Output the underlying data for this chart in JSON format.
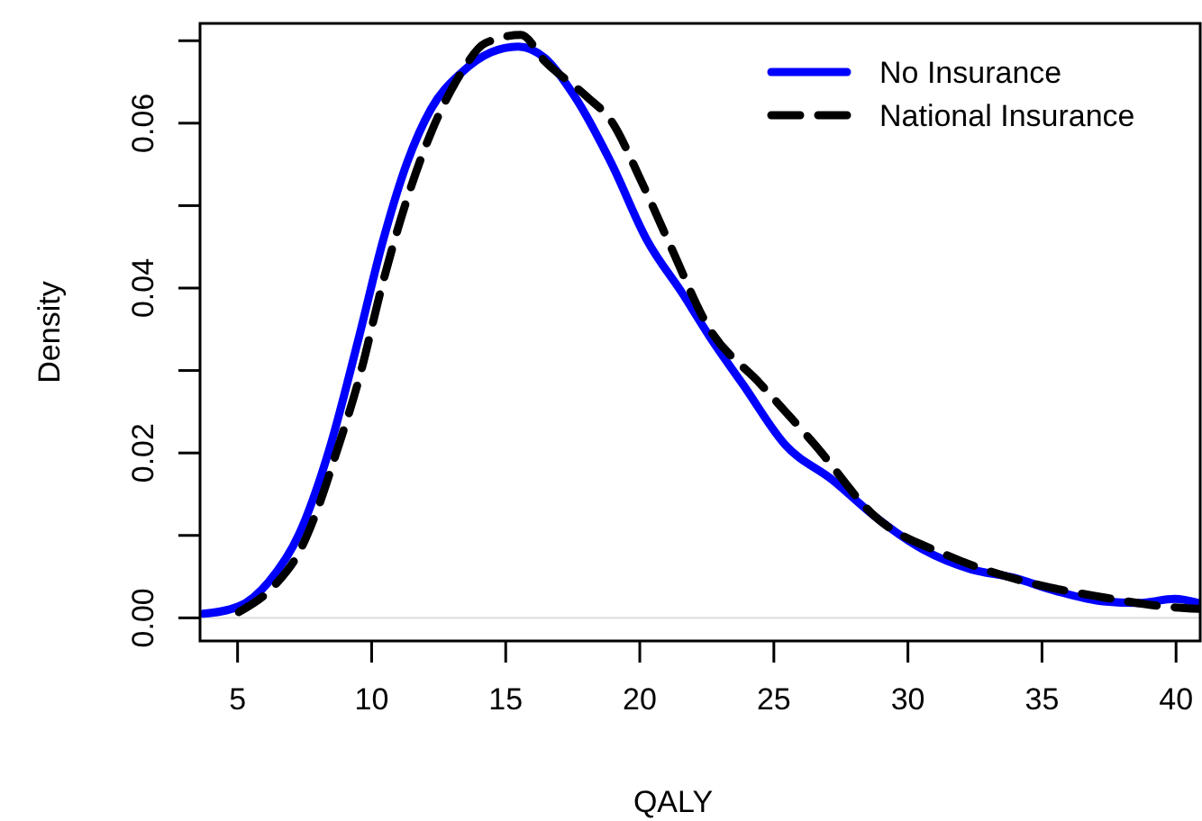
{
  "chart_data": {
    "type": "line",
    "xlabel": "QALY",
    "ylabel": "Density",
    "xlim": [
      3.6,
      40.9
    ],
    "xticks": [
      5,
      10,
      15,
      20,
      25,
      30,
      35,
      40
    ],
    "ylim": [
      -0.0028,
      0.0721
    ],
    "yticks": [
      {
        "value": 0,
        "label": "0.00"
      },
      {
        "value": 0.01,
        "label": null
      },
      {
        "value": 0.02,
        "label": "0.02"
      },
      {
        "value": 0.03,
        "label": null
      },
      {
        "value": 0.04,
        "label": "0.04"
      },
      {
        "value": 0.05,
        "label": null
      },
      {
        "value": 0.06,
        "label": "0.06"
      },
      {
        "value": 0.07,
        "label": null
      }
    ],
    "legend": "top right",
    "grid": false,
    "ref_lines": [
      {
        "axis": "y",
        "value": 0,
        "color": "#e0e0e0"
      }
    ],
    "series": [
      {
        "name": "No Insurance",
        "color": "#0000ff",
        "line_style": "solid",
        "x": [
          3.71,
          5.05,
          6.17,
          7.3,
          8.41,
          9.53,
          10.42,
          11.32,
          12.21,
          13.34,
          14.45,
          15.46,
          16.46,
          17.58,
          18.93,
          20.27,
          21.6,
          22.73,
          23.85,
          25.42,
          27.2,
          28.77,
          30.56,
          32.35,
          33.9,
          35.48,
          37.27,
          38.6,
          39.95,
          40.85
        ],
        "values": [
          0.0005,
          0.0014,
          0.0044,
          0.0102,
          0.0203,
          0.0341,
          0.0457,
          0.0552,
          0.0617,
          0.0661,
          0.0686,
          0.0693,
          0.0679,
          0.0632,
          0.0552,
          0.0458,
          0.0393,
          0.0335,
          0.0283,
          0.021,
          0.0167,
          0.0123,
          0.0083,
          0.0059,
          0.0049,
          0.0033,
          0.002,
          0.0018,
          0.0023,
          0.0018
        ]
      },
      {
        "name": "National Insurance",
        "color": "#000000",
        "line_style": "dashed",
        "x": [
          5.05,
          6.4,
          7.3,
          7.97,
          8.64,
          9.53,
          10.42,
          11.32,
          12.21,
          13.34,
          14.23,
          15.57,
          16.46,
          18.03,
          18.93,
          20.05,
          21.16,
          22.5,
          24.52,
          26.53,
          28.77,
          31.46,
          34.36,
          37.27,
          39.51,
          40.85
        ],
        "values": [
          0.0007,
          0.004,
          0.008,
          0.0131,
          0.0196,
          0.029,
          0.0407,
          0.0508,
          0.0588,
          0.0661,
          0.0697,
          0.0707,
          0.0675,
          0.0632,
          0.0603,
          0.053,
          0.045,
          0.0356,
          0.0283,
          0.021,
          0.0123,
          0.0076,
          0.0044,
          0.0025,
          0.0014,
          0.0011
        ]
      }
    ]
  }
}
